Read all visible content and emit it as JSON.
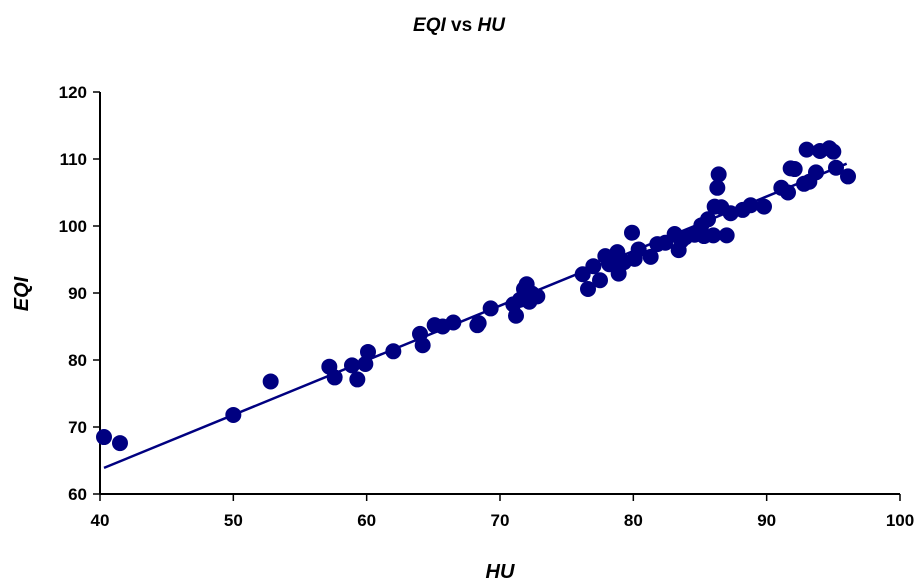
{
  "chart_data": {
    "type": "scatter",
    "title_parts": [
      {
        "text": "EQI",
        "italic": true
      },
      {
        "text": " vs ",
        "italic": false
      },
      {
        "text": "HU",
        "italic": true
      }
    ],
    "xlabel": "HU",
    "ylabel": "EQI",
    "xlim": [
      40,
      100
    ],
    "ylim": [
      60,
      120
    ],
    "xticks": [
      40,
      50,
      60,
      70,
      80,
      90,
      100
    ],
    "yticks": [
      60,
      70,
      80,
      90,
      100,
      110,
      120
    ],
    "grid": false,
    "legend": "none",
    "marker_color": "#000080",
    "line_color": "#000080",
    "series": [
      {
        "points": [
          [
            40.3,
            68.5
          ],
          [
            41.5,
            67.6
          ],
          [
            50.0,
            71.8
          ],
          [
            52.8,
            76.8
          ],
          [
            57.2,
            79.0
          ],
          [
            57.6,
            77.4
          ],
          [
            58.9,
            79.2
          ],
          [
            59.3,
            77.1
          ],
          [
            59.9,
            79.4
          ],
          [
            60.1,
            81.2
          ],
          [
            62.0,
            81.3
          ],
          [
            64.0,
            83.9
          ],
          [
            64.2,
            82.2
          ],
          [
            65.1,
            85.2
          ],
          [
            65.7,
            85.0
          ],
          [
            66.5,
            85.6
          ],
          [
            68.3,
            85.2
          ],
          [
            68.4,
            85.5
          ],
          [
            69.3,
            87.7
          ],
          [
            71.0,
            88.3
          ],
          [
            71.2,
            86.6
          ],
          [
            71.5,
            89.0
          ],
          [
            71.8,
            90.6
          ],
          [
            72.0,
            91.3
          ],
          [
            72.2,
            88.7
          ],
          [
            72.4,
            89.9
          ],
          [
            72.8,
            89.5
          ],
          [
            76.2,
            92.8
          ],
          [
            76.6,
            90.6
          ],
          [
            77.0,
            94.0
          ],
          [
            77.5,
            91.9
          ],
          [
            77.9,
            95.5
          ],
          [
            78.2,
            94.3
          ],
          [
            78.5,
            95.2
          ],
          [
            78.8,
            96.1
          ],
          [
            78.9,
            92.9
          ],
          [
            79.3,
            94.6
          ],
          [
            79.9,
            99.0
          ],
          [
            80.1,
            95.1
          ],
          [
            80.4,
            96.5
          ],
          [
            81.3,
            95.4
          ],
          [
            81.8,
            97.3
          ],
          [
            82.4,
            97.5
          ],
          [
            83.1,
            98.8
          ],
          [
            83.4,
            96.4
          ],
          [
            83.6,
            97.8
          ],
          [
            83.9,
            98.3
          ],
          [
            84.6,
            98.7
          ],
          [
            85.1,
            100.1
          ],
          [
            85.3,
            98.5
          ],
          [
            85.6,
            101.0
          ],
          [
            86.0,
            98.6
          ],
          [
            86.1,
            102.9
          ],
          [
            86.3,
            105.7
          ],
          [
            86.4,
            107.7
          ],
          [
            86.6,
            102.8
          ],
          [
            87.0,
            98.6
          ],
          [
            87.3,
            101.9
          ],
          [
            88.2,
            102.4
          ],
          [
            88.8,
            103.1
          ],
          [
            89.8,
            102.9
          ],
          [
            91.1,
            105.7
          ],
          [
            91.6,
            105.0
          ],
          [
            91.8,
            108.6
          ],
          [
            92.1,
            108.5
          ],
          [
            92.8,
            106.3
          ],
          [
            93.0,
            111.4
          ],
          [
            93.2,
            106.6
          ],
          [
            93.7,
            108.0
          ],
          [
            94.0,
            111.2
          ],
          [
            94.7,
            111.6
          ],
          [
            95.0,
            111.1
          ],
          [
            95.2,
            108.7
          ],
          [
            96.1,
            107.4
          ]
        ]
      }
    ],
    "trendline": {
      "x": [
        40.3,
        96.0
      ],
      "y": [
        63.9,
        109.3
      ]
    }
  }
}
